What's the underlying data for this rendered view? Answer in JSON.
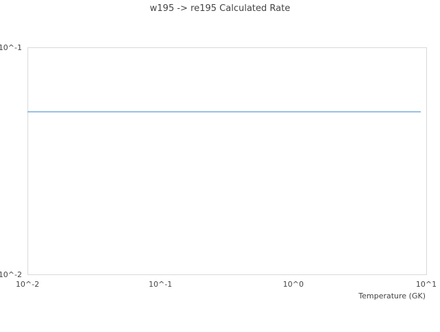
{
  "chart_data": {
    "type": "line",
    "title": "w195 -> re195 Calculated Rate",
    "xlabel": "Temperature (GK)",
    "ylabel": "",
    "x_scale": "log",
    "y_scale": "log",
    "xlim": [
      0.01,
      10
    ],
    "ylim": [
      0.01,
      0.1
    ],
    "x_tick_labels": [
      "10^-2",
      "10^-1",
      "10^0",
      "10^1"
    ],
    "y_tick_labels": [
      "10^-2",
      "10^-1"
    ],
    "grid": false,
    "series": [
      {
        "color": "#5b9bd5",
        "x": [
          0.01,
          9.1
        ],
        "y": [
          0.052,
          0.052
        ]
      }
    ]
  }
}
